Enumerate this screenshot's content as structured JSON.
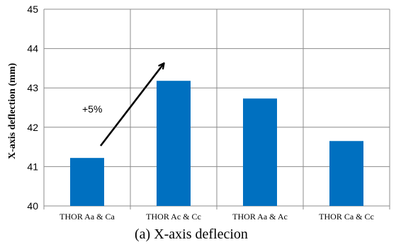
{
  "chart_data": {
    "type": "bar",
    "categories": [
      "THOR Aa & Ca",
      "THOR Ac & Cc",
      "THOR Aa & Ac",
      "THOR Ca & Cc"
    ],
    "values": [
      41.22,
      43.18,
      42.73,
      41.65
    ],
    "ylabel": "X-axis deflection (mm)",
    "ylim": [
      40,
      45
    ],
    "yticks": [
      40,
      41,
      42,
      43,
      44,
      45
    ],
    "grid": true,
    "bar_color": "#0070C0",
    "annotation": {
      "text": "+5%",
      "from_category": 0,
      "to_category": 1
    },
    "caption": "(a)   X-axis deflecion"
  }
}
